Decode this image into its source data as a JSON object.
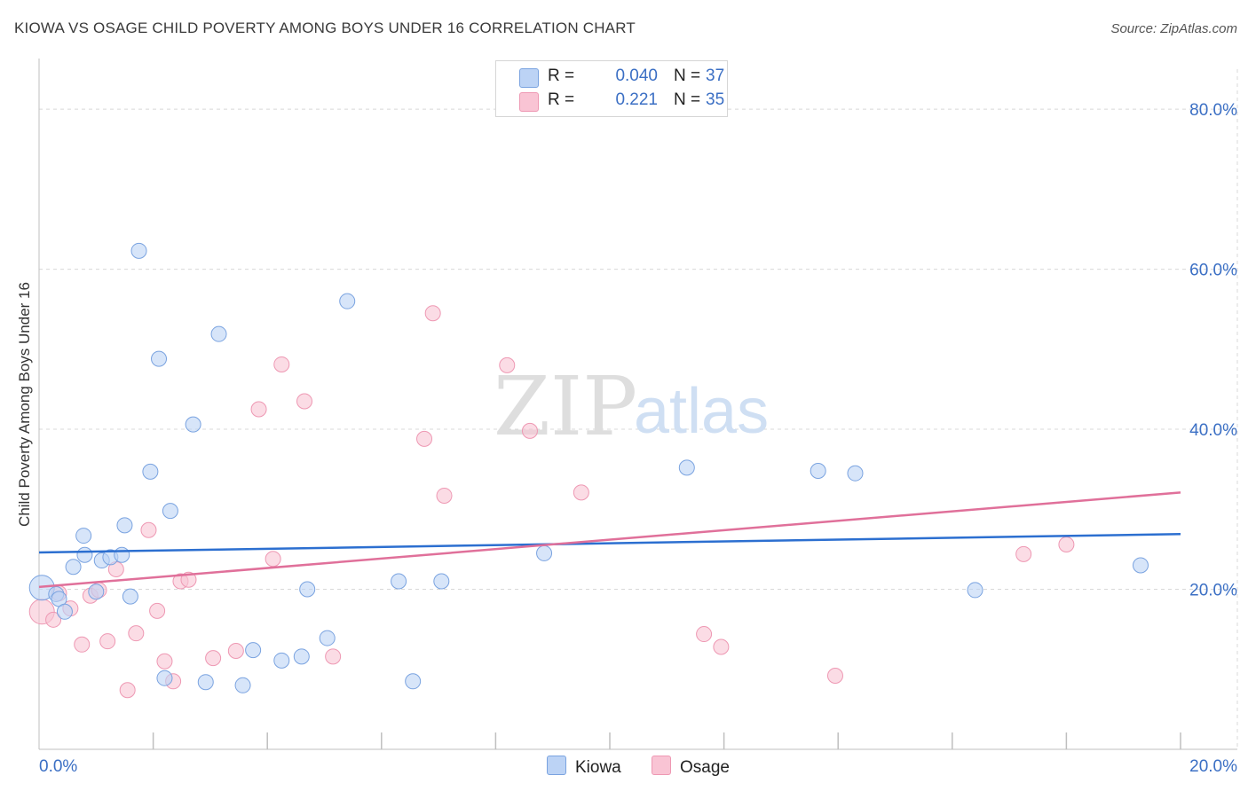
{
  "title": "KIOWA VS OSAGE CHILD POVERTY AMONG BOYS UNDER 16 CORRELATION CHART",
  "source": "Source: ZipAtlas.com",
  "watermark": {
    "zip": "ZIP",
    "atlas": "atlas"
  },
  "legend": {
    "r_label": "R =",
    "n_label": "N =",
    "rows": [
      {
        "r": "0.040",
        "n": "37"
      },
      {
        "r": "0.221",
        "n": "35"
      }
    ]
  },
  "colors": {
    "kiowa_fill": "#bcd3f5",
    "kiowa_stroke": "#7aa3e0",
    "kiowa_line": "#2c6fd0",
    "osage_fill": "#f9c4d4",
    "osage_stroke": "#ee98b3",
    "osage_line": "#e0709a",
    "axis_text": "#3b6fc4",
    "grid": "#d8d8d8"
  },
  "chart_data": {
    "type": "scatter",
    "title": "KIOWA VS OSAGE CHILD POVERTY AMONG BOYS UNDER 16 CORRELATION CHART",
    "xlabel": "",
    "ylabel": "Child Poverty Among Boys Under 16",
    "xlim": [
      0,
      20
    ],
    "ylim": [
      0,
      85
    ],
    "x_tick_labels": [
      "0.0%",
      "20.0%"
    ],
    "y_tick_labels": [
      "20.0%",
      "40.0%",
      "60.0%",
      "80.0%"
    ],
    "y_ticks": [
      20,
      40,
      60,
      80
    ],
    "legend_position": "top-center",
    "series": [
      {
        "name": "Kiowa",
        "r": 0.04,
        "n": 37,
        "trend": {
          "y_at_x0": 24.6,
          "y_at_x20": 26.9
        },
        "points": [
          [
            0.05,
            20.2
          ],
          [
            0.3,
            19.4
          ],
          [
            0.35,
            18.8
          ],
          [
            0.45,
            17.2
          ],
          [
            0.6,
            22.8
          ],
          [
            0.8,
            24.3
          ],
          [
            0.78,
            26.7
          ],
          [
            1.1,
            23.6
          ],
          [
            1.25,
            24.0
          ],
          [
            1.45,
            24.3
          ],
          [
            1.0,
            19.7
          ],
          [
            1.5,
            28.0
          ],
          [
            1.6,
            19.1
          ],
          [
            1.75,
            62.3
          ],
          [
            1.95,
            34.7
          ],
          [
            2.1,
            48.8
          ],
          [
            2.3,
            29.8
          ],
          [
            2.2,
            8.9
          ],
          [
            2.7,
            40.6
          ],
          [
            2.92,
            8.4
          ],
          [
            3.15,
            51.9
          ],
          [
            3.57,
            8.0
          ],
          [
            3.75,
            12.4
          ],
          [
            4.25,
            11.1
          ],
          [
            4.6,
            11.6
          ],
          [
            4.7,
            20.0
          ],
          [
            5.05,
            13.9
          ],
          [
            5.4,
            56.0
          ],
          [
            6.3,
            21.0
          ],
          [
            6.55,
            8.5
          ],
          [
            7.05,
            21.0
          ],
          [
            8.85,
            24.5
          ],
          [
            11.35,
            35.2
          ],
          [
            13.65,
            34.8
          ],
          [
            14.3,
            34.5
          ],
          [
            16.4,
            19.9
          ],
          [
            19.3,
            23.0
          ]
        ]
      },
      {
        "name": "Osage",
        "r": 0.221,
        "n": 35,
        "trend": {
          "y_at_x0": 20.3,
          "y_at_x20": 32.1
        },
        "points": [
          [
            0.05,
            17.2
          ],
          [
            0.25,
            16.2
          ],
          [
            0.55,
            17.6
          ],
          [
            0.35,
            19.5
          ],
          [
            0.75,
            13.1
          ],
          [
            0.9,
            19.2
          ],
          [
            1.05,
            19.9
          ],
          [
            1.2,
            13.5
          ],
          [
            1.35,
            22.5
          ],
          [
            1.55,
            7.4
          ],
          [
            1.7,
            14.5
          ],
          [
            1.92,
            27.4
          ],
          [
            2.07,
            17.3
          ],
          [
            2.2,
            11.0
          ],
          [
            2.35,
            8.5
          ],
          [
            2.48,
            21.0
          ],
          [
            2.62,
            21.2
          ],
          [
            3.05,
            11.4
          ],
          [
            3.45,
            12.3
          ],
          [
            3.85,
            42.5
          ],
          [
            4.1,
            23.8
          ],
          [
            4.25,
            48.1
          ],
          [
            4.65,
            43.5
          ],
          [
            5.15,
            11.6
          ],
          [
            6.75,
            38.8
          ],
          [
            6.9,
            54.5
          ],
          [
            7.1,
            31.7
          ],
          [
            8.2,
            48.0
          ],
          [
            8.6,
            39.8
          ],
          [
            9.5,
            32.1
          ],
          [
            11.65,
            14.4
          ],
          [
            11.95,
            12.8
          ],
          [
            13.95,
            9.2
          ],
          [
            17.25,
            24.4
          ],
          [
            18.0,
            25.6
          ]
        ]
      }
    ]
  }
}
